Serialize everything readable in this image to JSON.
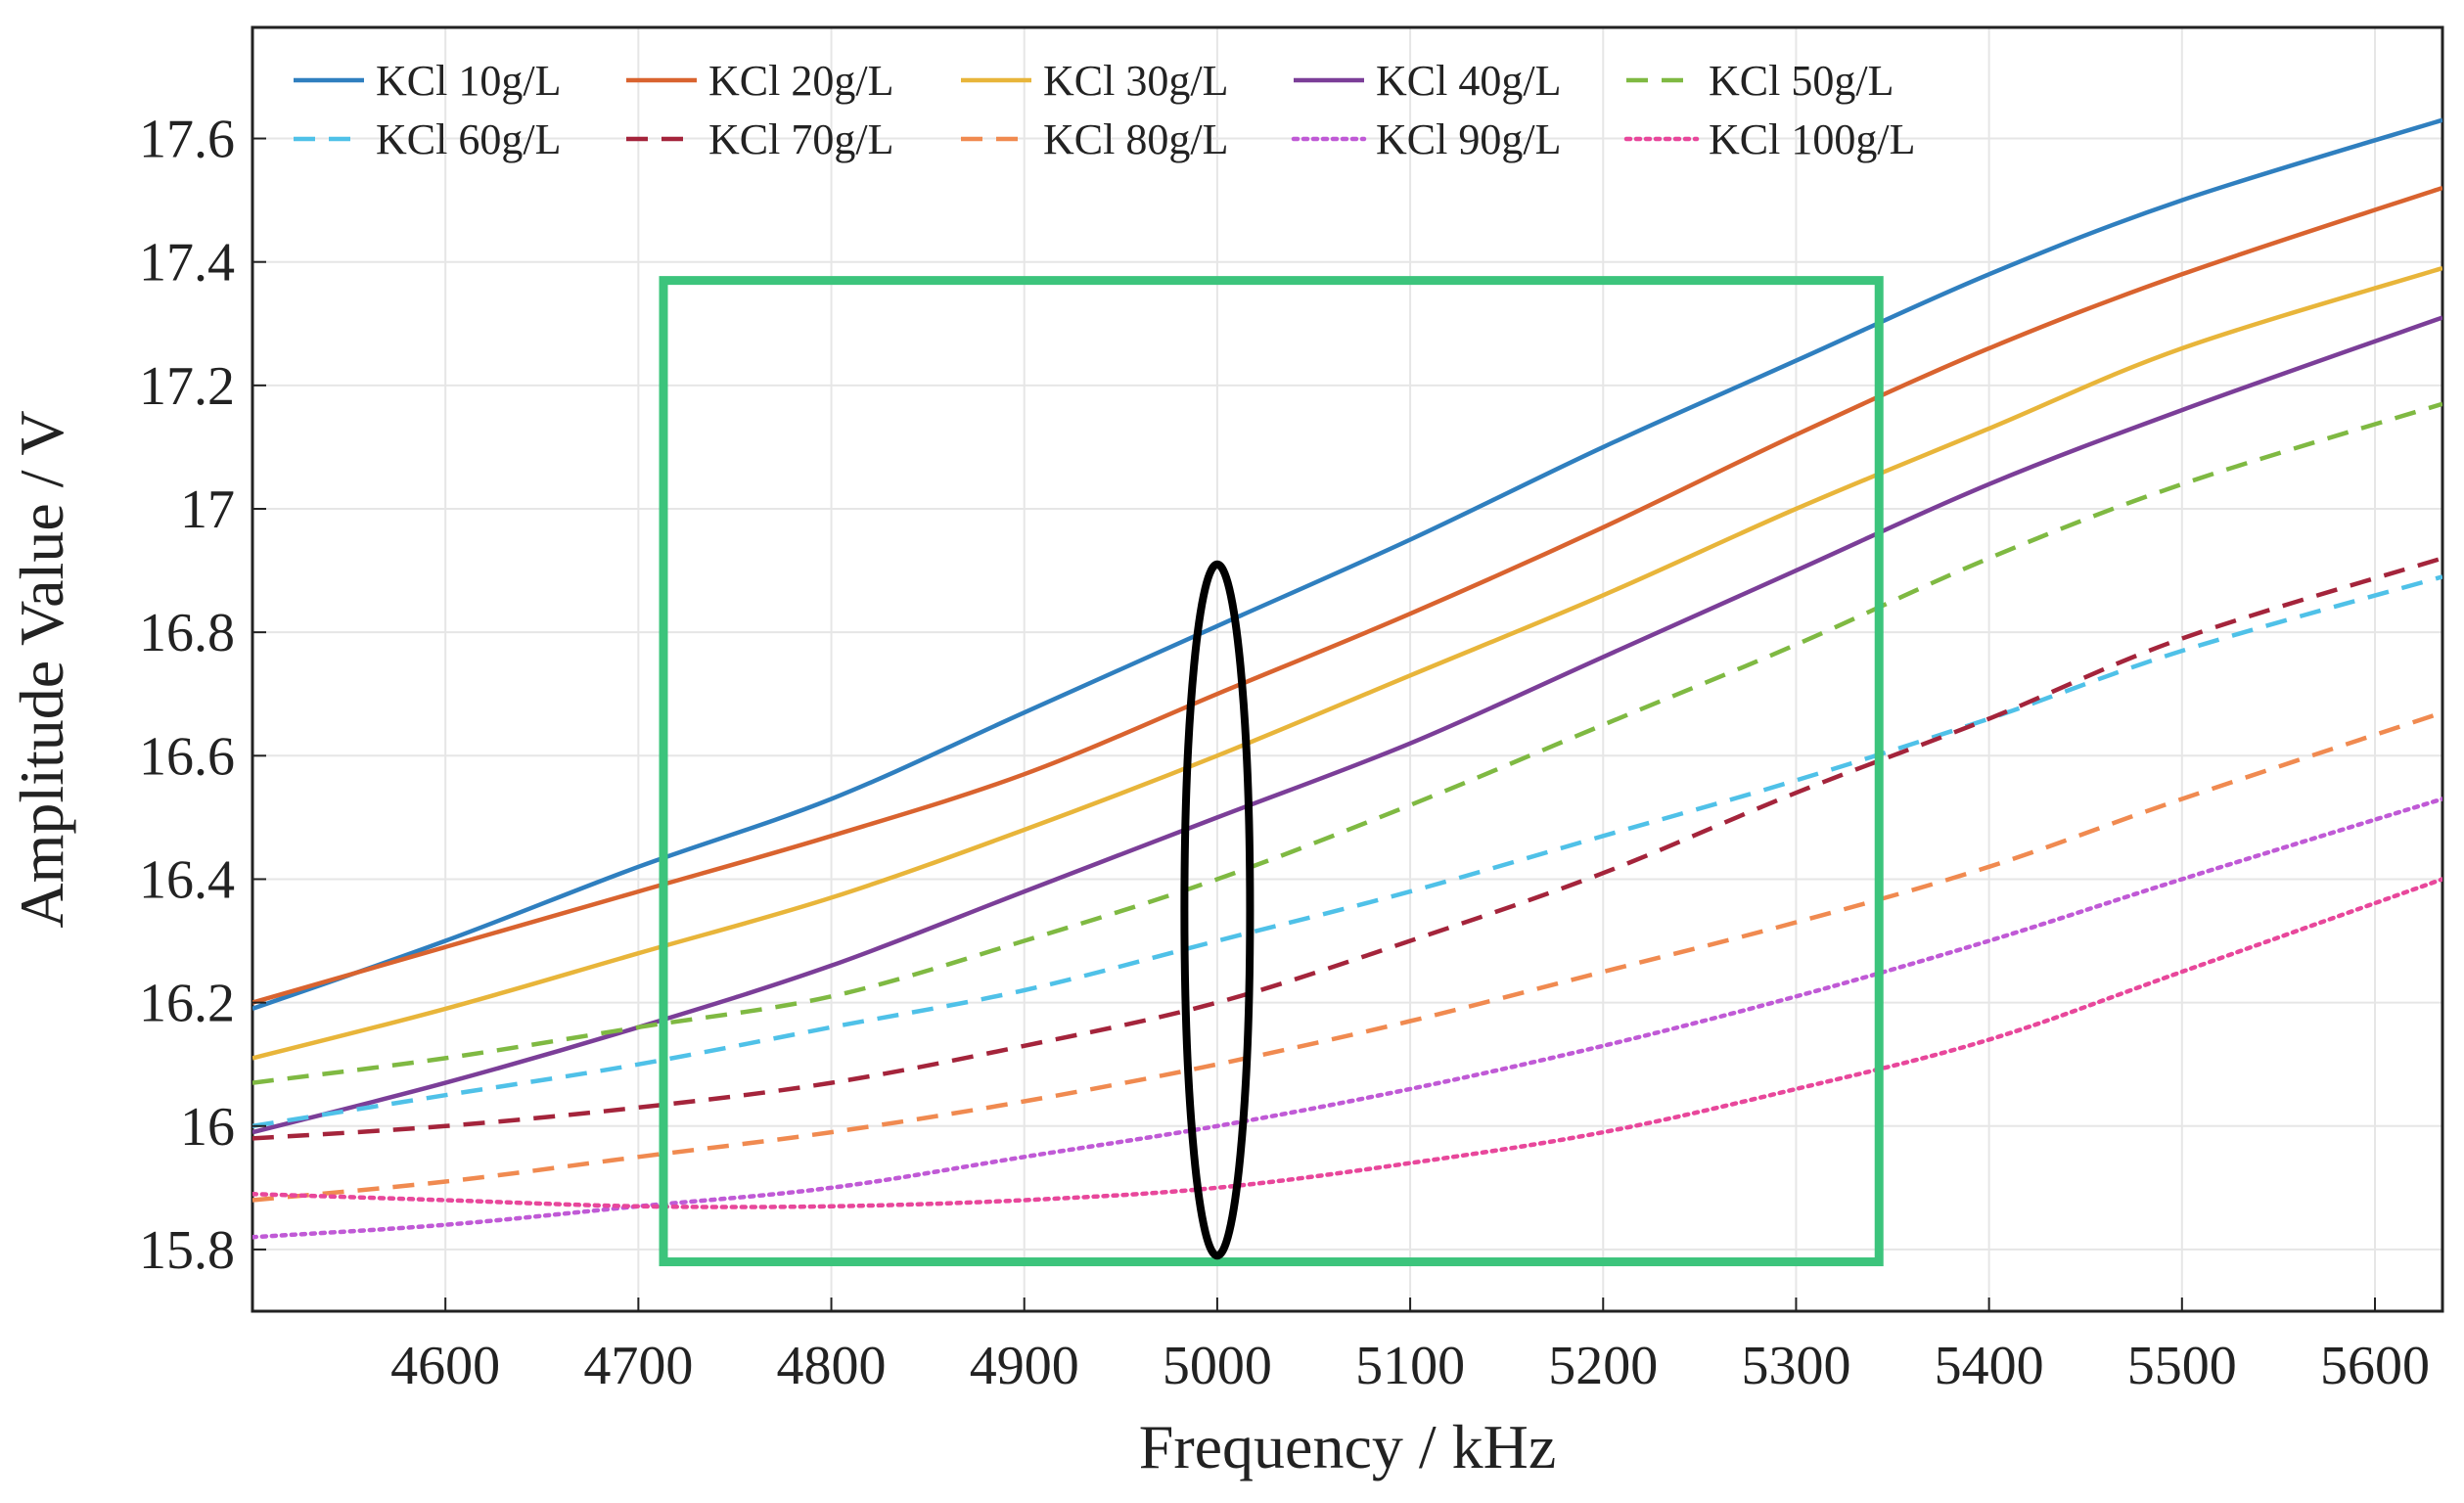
{
  "chart_data": {
    "type": "line",
    "title": "",
    "xlabel": "Frequency / kHz",
    "ylabel": "Amplitude Value / V",
    "xlim": [
      4500,
      5635
    ],
    "ylim": [
      15.7,
      17.78
    ],
    "grid": true,
    "x_ticks": [
      4600,
      4700,
      4800,
      4900,
      5000,
      5100,
      5200,
      5300,
      5400,
      5500,
      5600
    ],
    "x_tick_labels": [
      "4600",
      "4700",
      "4800",
      "4900",
      "5000",
      "5100",
      "5200",
      "5300",
      "5400",
      "5500",
      "5600"
    ],
    "y_ticks": [
      15.8,
      16.0,
      16.2,
      16.4,
      16.6,
      16.8,
      17.0,
      17.2,
      17.4,
      17.6
    ],
    "y_tick_labels": [
      "15.8",
      "16",
      "16.2",
      "16.4",
      "16.6",
      "16.8",
      "17",
      "17.2",
      "17.4",
      "17.6"
    ],
    "legend_position": "top-left",
    "x": [
      4500,
      4600,
      4700,
      4800,
      4900,
      5000,
      5100,
      5200,
      5300,
      5400,
      5500,
      5635
    ],
    "series": [
      {
        "name": "KCl 10g/L",
        "color": "#2f7fbf",
        "style": "solid",
        "values": [
          16.19,
          16.3,
          16.42,
          16.53,
          16.67,
          16.81,
          16.95,
          17.1,
          17.24,
          17.38,
          17.5,
          17.63
        ]
      },
      {
        "name": "KCl 20g/L",
        "color": "#d9632f",
        "style": "solid",
        "values": [
          16.2,
          16.29,
          16.38,
          16.47,
          16.57,
          16.7,
          16.83,
          16.97,
          17.12,
          17.26,
          17.38,
          17.52
        ]
      },
      {
        "name": "KCl 30g/L",
        "color": "#e8b53a",
        "style": "solid",
        "values": [
          16.11,
          16.19,
          16.28,
          16.37,
          16.48,
          16.6,
          16.73,
          16.86,
          17.0,
          17.13,
          17.26,
          17.39
        ]
      },
      {
        "name": "KCl 40g/L",
        "color": "#7b3e98",
        "style": "solid",
        "values": [
          15.99,
          16.07,
          16.16,
          16.26,
          16.38,
          16.5,
          16.62,
          16.76,
          16.9,
          17.04,
          17.16,
          17.31
        ]
      },
      {
        "name": "KCl 50g/L",
        "color": "#7fb942",
        "style": "dashed",
        "values": [
          16.07,
          16.11,
          16.16,
          16.21,
          16.3,
          16.4,
          16.52,
          16.65,
          16.78,
          16.92,
          17.04,
          17.17
        ]
      },
      {
        "name": "KCl 60g/L",
        "color": "#4fc1e8",
        "style": "dashed",
        "values": [
          16.0,
          16.05,
          16.1,
          16.16,
          16.22,
          16.3,
          16.38,
          16.47,
          16.56,
          16.66,
          16.77,
          16.89
        ]
      },
      {
        "name": "KCl 70g/L",
        "color": "#a4243b",
        "style": "dashed",
        "values": [
          15.98,
          16.0,
          16.03,
          16.07,
          16.13,
          16.2,
          16.3,
          16.41,
          16.54,
          16.66,
          16.79,
          16.92
        ]
      },
      {
        "name": "KCl 80g/L",
        "color": "#f08a50",
        "style": "dashed",
        "values": [
          15.88,
          15.91,
          15.95,
          15.99,
          16.04,
          16.1,
          16.17,
          16.25,
          16.33,
          16.42,
          16.53,
          16.67
        ]
      },
      {
        "name": "KCl 90g/L",
        "color": "#c05ad6",
        "style": "dotted",
        "values": [
          15.82,
          15.84,
          15.87,
          15.9,
          15.95,
          16.0,
          16.06,
          16.13,
          16.21,
          16.3,
          16.4,
          16.53
        ]
      },
      {
        "name": "KCl 100g/L",
        "color": "#e8479b",
        "style": "dotted",
        "values": [
          15.89,
          15.88,
          15.87,
          15.87,
          15.88,
          15.9,
          15.94,
          15.99,
          16.06,
          16.14,
          16.25,
          16.4
        ]
      }
    ],
    "annotations": {
      "highlight_box": {
        "x_start": 4713,
        "x_end": 5343,
        "y_start": 15.78,
        "y_end": 17.37,
        "color": "#3cc47c"
      },
      "ellipse": {
        "cx": 5000,
        "cy": 16.35,
        "rx": 17,
        "ry": 0.56,
        "color": "#000000"
      }
    }
  }
}
